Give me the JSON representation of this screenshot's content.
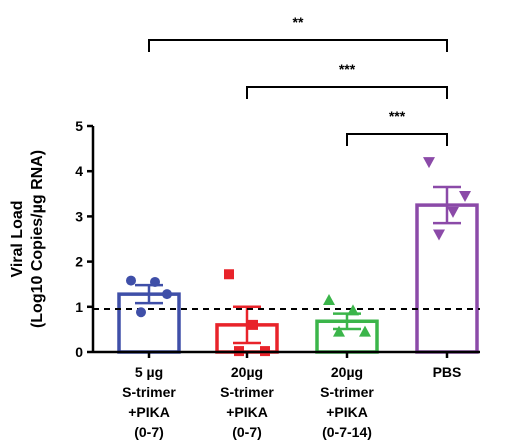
{
  "chart_data": {
    "type": "bar",
    "ylabel_line1": "Viral Load",
    "ylabel_line2": "(Log10 Copies/µg RNA)",
    "ylim": [
      0,
      5
    ],
    "yticks": [
      "0",
      "1",
      "2",
      "3",
      "4",
      "5"
    ],
    "threshold": 0.95,
    "grid": false,
    "categories": [
      {
        "lines": [
          "5 µg",
          "S-trimer",
          "+PIKA",
          "(0-7)"
        ],
        "color": "#3f4fa8",
        "marker": "circle",
        "mean": 1.28,
        "sem": 0.2,
        "points": [
          1.58,
          1.55,
          1.28,
          0.88
        ]
      },
      {
        "lines": [
          "20µg",
          "S-trimer",
          "+PIKA",
          "(0-7)"
        ],
        "color": "#e8232a",
        "marker": "square",
        "mean": 0.6,
        "sem": 0.4,
        "points": [
          1.72,
          0.6,
          0.02,
          0.02
        ]
      },
      {
        "lines": [
          "20µg",
          "S-trimer",
          "+PIKA",
          "(0-7-14)"
        ],
        "color": "#3bb54a",
        "marker": "triangle-up",
        "mean": 0.68,
        "sem": 0.17,
        "points": [
          1.15,
          0.92,
          0.45,
          0.45
        ]
      },
      {
        "lines": [
          "PBS"
        ],
        "color": "#8b4aa8",
        "marker": "triangle-down",
        "mean": 3.25,
        "sem": 0.4,
        "points": [
          4.2,
          3.1,
          3.45,
          2.6
        ]
      }
    ],
    "significance": [
      {
        "from": 0,
        "to": 3,
        "label": "**"
      },
      {
        "from": 1,
        "to": 3,
        "label": "***"
      },
      {
        "from": 2,
        "to": 3,
        "label": "***"
      }
    ]
  }
}
